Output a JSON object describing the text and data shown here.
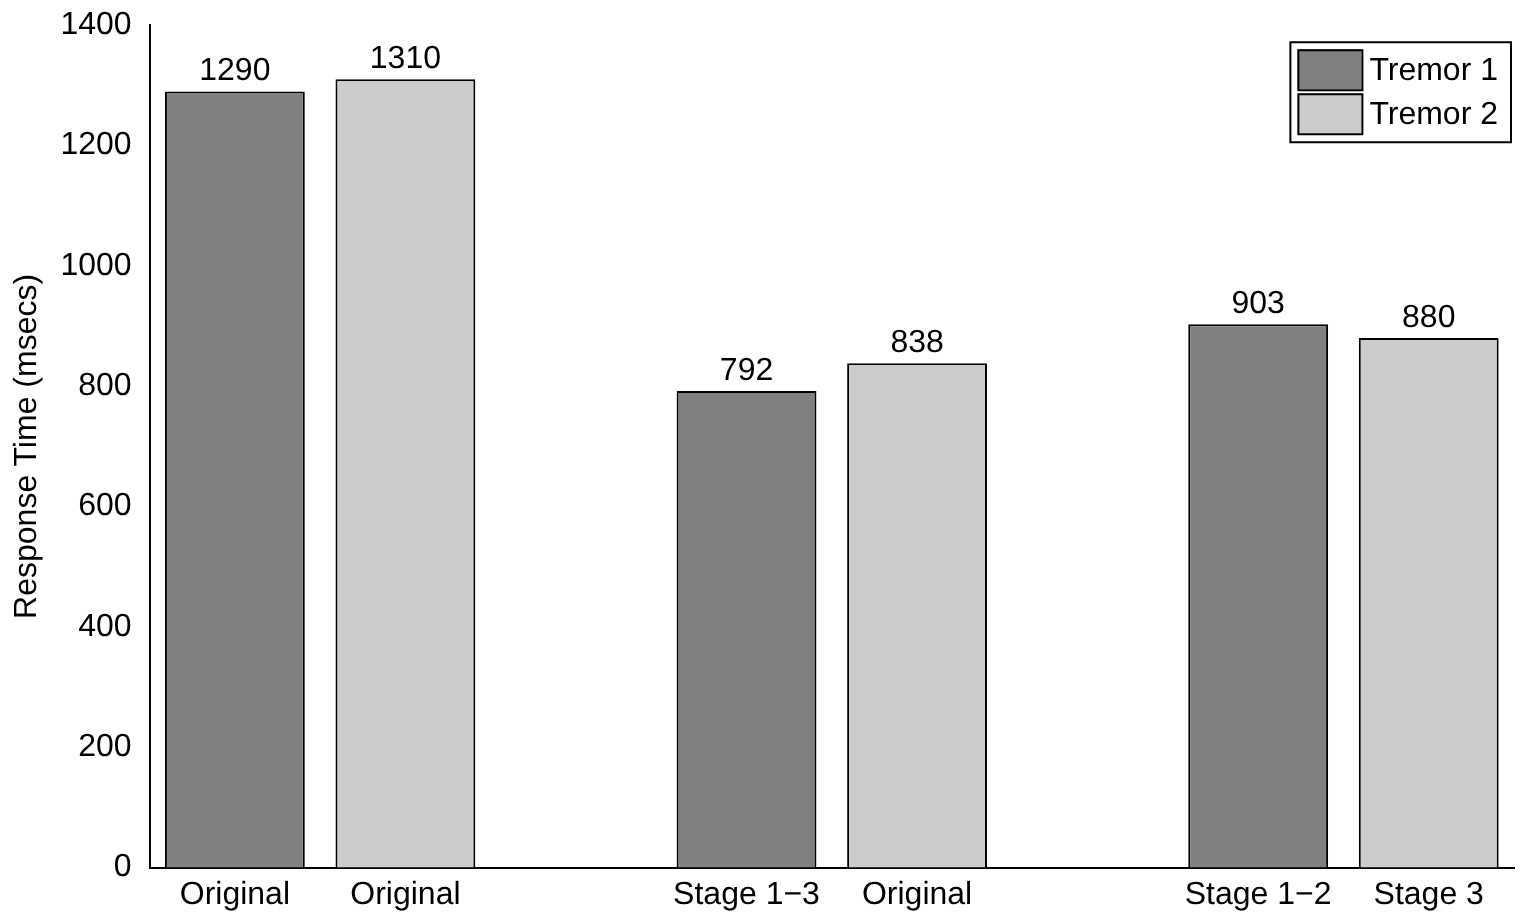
{
  "chart_data": {
    "type": "bar",
    "ylabel": "Response Time (msecs)",
    "categories": [
      "Original",
      "Original",
      null,
      "Stage 1−3",
      "Original",
      null,
      "Stage 1−2",
      "Stage 3"
    ],
    "series": [
      {
        "name": "Tremor 1",
        "color": "#808080",
        "values": [
          1290,
          null,
          null,
          792,
          null,
          null,
          903,
          null
        ]
      },
      {
        "name": "Tremor 2",
        "color": "#cccccc",
        "values": [
          null,
          1310,
          null,
          null,
          838,
          null,
          null,
          880
        ]
      }
    ],
    "ylim": [
      0,
      1400
    ],
    "yticks": [
      0,
      200,
      400,
      600,
      800,
      1000,
      1200,
      1400
    ],
    "grid": false,
    "legend": "top right",
    "data_labels": true
  }
}
